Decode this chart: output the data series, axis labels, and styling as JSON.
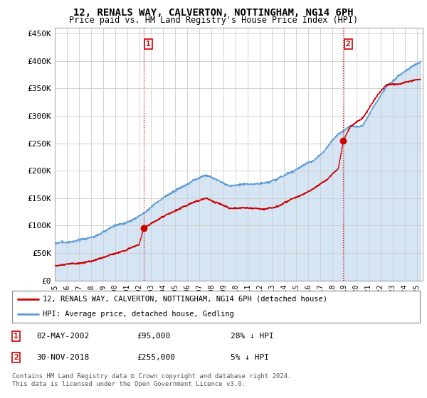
{
  "title": "12, RENALS WAY, CALVERTON, NOTTINGHAM, NG14 6PH",
  "subtitle": "Price paid vs. HM Land Registry's House Price Index (HPI)",
  "ylabel_ticks": [
    "£0",
    "£50K",
    "£100K",
    "£150K",
    "£200K",
    "£250K",
    "£300K",
    "£350K",
    "£400K",
    "£450K"
  ],
  "ytick_values": [
    0,
    50000,
    100000,
    150000,
    200000,
    250000,
    300000,
    350000,
    400000,
    450000
  ],
  "ylim": [
    0,
    460000
  ],
  "xlim_start": 1995.0,
  "xlim_end": 2025.5,
  "hpi_color": "#5b9bd5",
  "hpi_fill_color": "#ddeeff",
  "price_color": "#cc0000",
  "sale1_x": 2002.37,
  "sale1_y": 95000,
  "sale2_x": 2018.92,
  "sale2_y": 255000,
  "vline_color": "#cc0000",
  "vline_style": ":",
  "legend_entry1": "12, RENALS WAY, CALVERTON, NOTTINGHAM, NG14 6PH (detached house)",
  "legend_entry2": "HPI: Average price, detached house, Gedling",
  "table_rows": [
    {
      "num": "1",
      "date": "02-MAY-2002",
      "price": "£95,000",
      "hpi": "28% ↓ HPI"
    },
    {
      "num": "2",
      "date": "30-NOV-2018",
      "price": "£255,000",
      "hpi": "5% ↓ HPI"
    }
  ],
  "footnote": "Contains HM Land Registry data © Crown copyright and database right 2024.\nThis data is licensed under the Open Government Licence v3.0.",
  "background_color": "#ffffff",
  "plot_bg_color": "#ffffff",
  "grid_color": "#cccccc",
  "xtick_years": [
    1995,
    1996,
    1997,
    1998,
    1999,
    2000,
    2001,
    2002,
    2003,
    2004,
    2005,
    2006,
    2007,
    2008,
    2009,
    2010,
    2011,
    2012,
    2013,
    2014,
    2015,
    2016,
    2017,
    2018,
    2019,
    2020,
    2021,
    2022,
    2023,
    2024,
    2025
  ]
}
